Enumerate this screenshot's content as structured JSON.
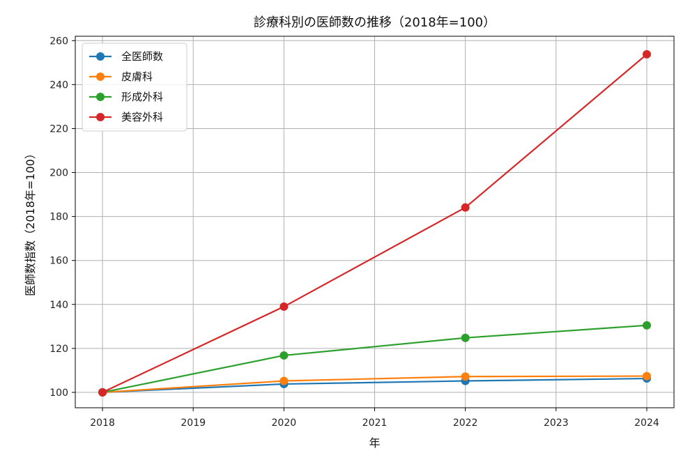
{
  "chart_data": {
    "type": "line",
    "title": "診療科別の医師数の推移（2018年=100）",
    "xlabel": "年",
    "ylabel": "医師数指数（2018年=100）",
    "x": [
      2018,
      2020,
      2022,
      2024
    ],
    "xticks": [
      "2018",
      "2019",
      "2020",
      "2021",
      "2022",
      "2023",
      "2024"
    ],
    "yticks": [
      "100",
      "120",
      "140",
      "160",
      "180",
      "200",
      "220",
      "240",
      "260"
    ],
    "xlim": [
      2017.7,
      2024.3
    ],
    "ylim": [
      93,
      262
    ],
    "grid": true,
    "legend_position": "top-left",
    "series": [
      {
        "name": "全医師数",
        "color": "#1f77b4",
        "values": [
          100,
          103.8,
          105.2,
          106.3
        ]
      },
      {
        "name": "皮膚科",
        "color": "#ff7f0e",
        "values": [
          100,
          105.2,
          107.2,
          107.4
        ]
      },
      {
        "name": "形成外科",
        "color": "#2ca02c",
        "values": [
          100,
          116.8,
          124.8,
          130.5
        ]
      },
      {
        "name": "美容外科",
        "color": "#d62728",
        "values": [
          100,
          139.0,
          184.1,
          253.8
        ]
      }
    ]
  }
}
